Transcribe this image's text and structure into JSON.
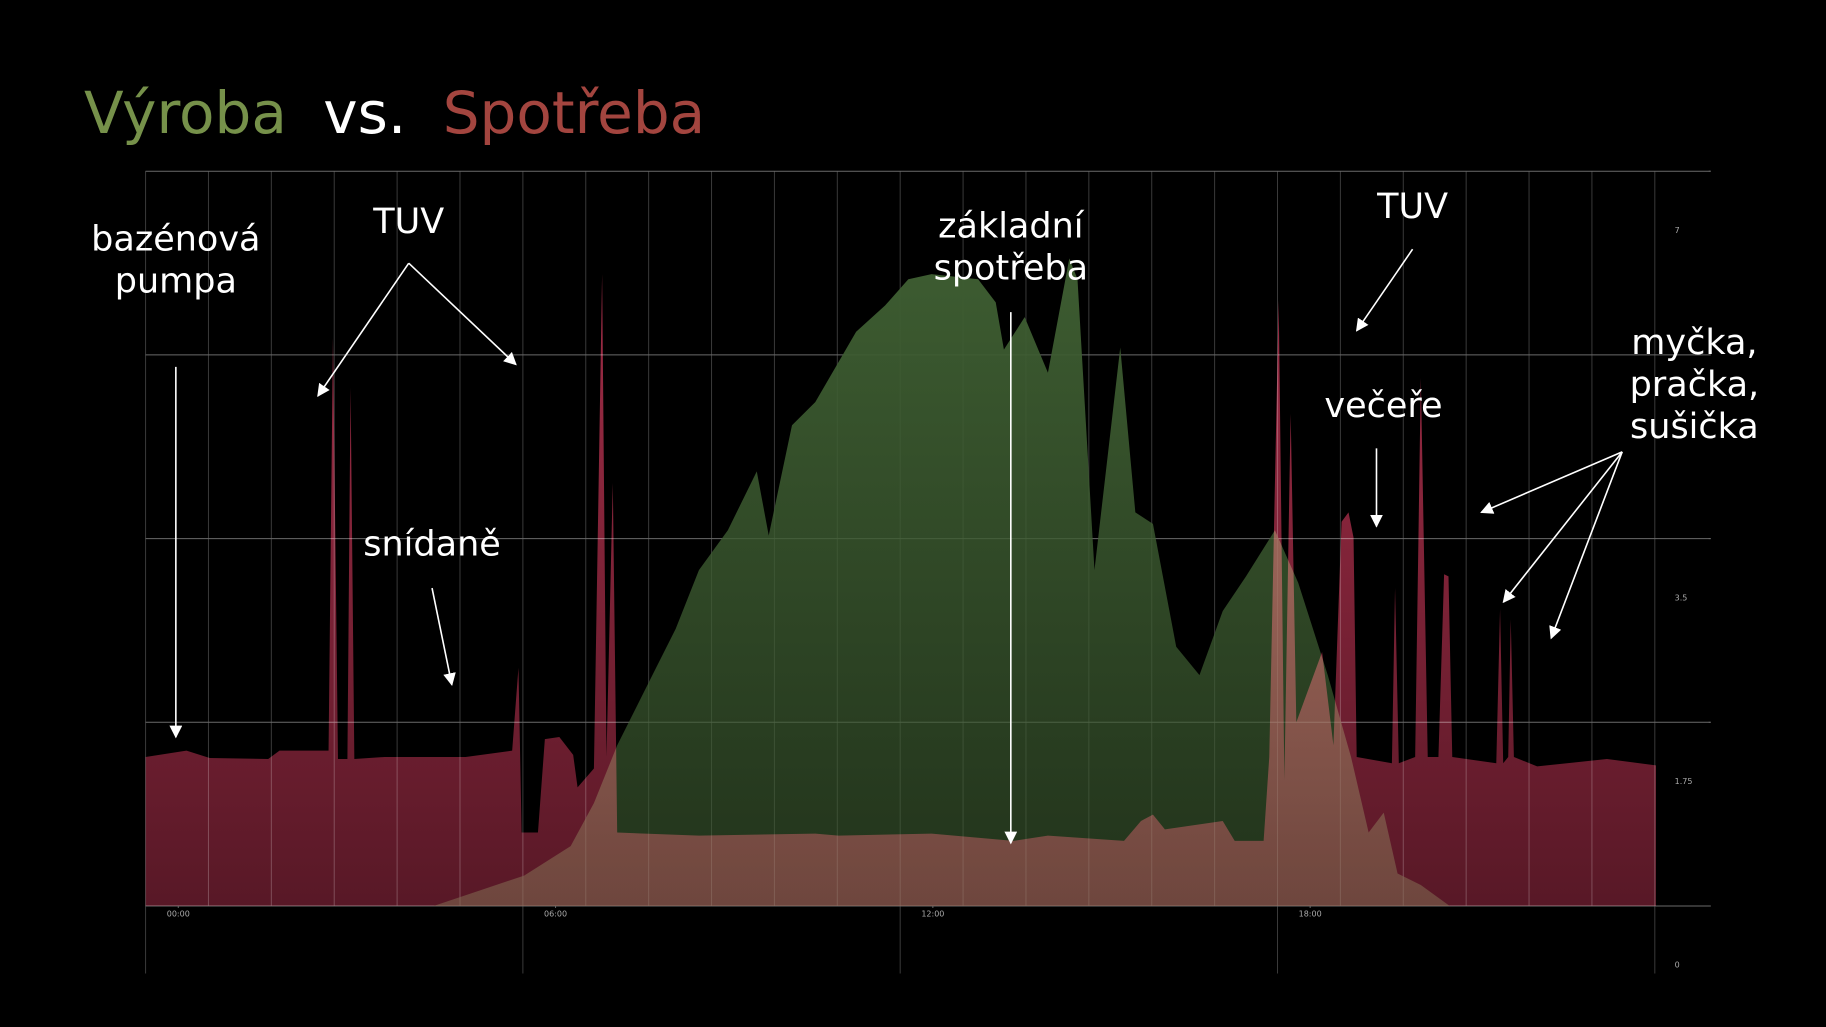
{
  "chart_data": {
    "type": "area",
    "title_separator": "vs.",
    "xlim": [
      -0.52,
      24.37
    ],
    "xticks": [
      {
        "value": 0,
        "label": "00:00"
      },
      {
        "value": 6,
        "label": "06:00"
      },
      {
        "value": 12,
        "label": "12:00"
      },
      {
        "value": 18,
        "label": "18:00"
      }
    ],
    "ylim": [
      0,
      7
    ],
    "yticks": [
      0,
      1.75,
      3.5,
      7
    ],
    "grid": true,
    "series": [
      {
        "name": "Výroba",
        "color": "#3d5c31",
        "title_color": "#76914a",
        "x": [
          4.06,
          5.5,
          6.24,
          6.61,
          6.98,
          7.54,
          7.91,
          8.28,
          8.74,
          9.2,
          9.39,
          9.76,
          10.13,
          10.78,
          11.24,
          11.61,
          11.98,
          12.72,
          13.0,
          13.13,
          13.46,
          13.83,
          14.17,
          14.3,
          14.57,
          14.98,
          15.22,
          15.5,
          15.87,
          16.24,
          16.61,
          16.98,
          17.44,
          17.81,
          18.28,
          18.65,
          18.93,
          19.17,
          19.39,
          19.76,
          20.22
        ],
        "values": [
          0,
          0.29,
          0.57,
          0.98,
          1.53,
          2.2,
          2.64,
          3.2,
          3.58,
          4.14,
          3.53,
          4.58,
          4.8,
          5.47,
          5.72,
          5.97,
          6.02,
          5.97,
          5.75,
          5.3,
          5.61,
          5.08,
          6.17,
          5.97,
          3.2,
          5.32,
          3.75,
          3.64,
          2.47,
          2.2,
          2.81,
          3.14,
          3.58,
          3.08,
          2.2,
          1.42,
          0.7,
          0.89,
          0.31,
          0.2,
          0
        ]
      },
      {
        "name": "Spotřeba",
        "color": "#a02c46",
        "title_color": "#a3453f",
        "x": [
          -0.52,
          0.13,
          0.5,
          1.43,
          1.61,
          2.39,
          2.46,
          2.54,
          2.69,
          2.74,
          2.8,
          3.28,
          4.57,
          5.31,
          5.41,
          5.46,
          5.72,
          5.83,
          6.06,
          6.28,
          6.35,
          6.61,
          6.74,
          6.81,
          6.91,
          6.98,
          8.28,
          10.13,
          10.5,
          11.98,
          13.28,
          13.83,
          15.04,
          15.31,
          15.5,
          15.69,
          16.61,
          16.8,
          17.26,
          17.35,
          17.5,
          17.59,
          17.69,
          17.78,
          18.19,
          18.37,
          18.5,
          18.61,
          18.69,
          18.74,
          19.3,
          19.35,
          19.41,
          19.67,
          19.76,
          19.87,
          20.04,
          20.13,
          20.2,
          20.26,
          20.96,
          21.02,
          21.07,
          21.15,
          21.19,
          21.24,
          21.61,
          22.72,
          23.5
        ],
        "values": [
          1.42,
          1.48,
          1.41,
          1.4,
          1.48,
          1.48,
          5.41,
          1.4,
          1.4,
          4.94,
          1.4,
          1.42,
          1.42,
          1.48,
          2.27,
          0.7,
          0.7,
          1.59,
          1.61,
          1.44,
          1.13,
          1.31,
          6.02,
          1.42,
          4.03,
          0.7,
          0.67,
          0.69,
          0.67,
          0.69,
          0.62,
          0.67,
          0.62,
          0.81,
          0.87,
          0.73,
          0.81,
          0.62,
          0.62,
          1.42,
          5.77,
          1.2,
          4.69,
          1.75,
          2.42,
          1.53,
          3.66,
          3.75,
          3.51,
          1.42,
          1.36,
          3.03,
          1.36,
          1.42,
          5.03,
          1.42,
          1.42,
          3.16,
          3.14,
          1.42,
          1.36,
          2.83,
          1.36,
          1.42,
          2.73,
          1.42,
          1.33,
          1.4,
          1.34
        ]
      }
    ],
    "annotations": [
      [
        "bazénová",
        "pumpa"
      ],
      [
        "TUV"
      ],
      [
        "snídaně"
      ],
      [
        "základní",
        "spotřeba"
      ],
      [
        "TUV"
      ],
      [
        "večeře"
      ],
      [
        "myčka,",
        "pračka,",
        "sušička"
      ]
    ]
  }
}
